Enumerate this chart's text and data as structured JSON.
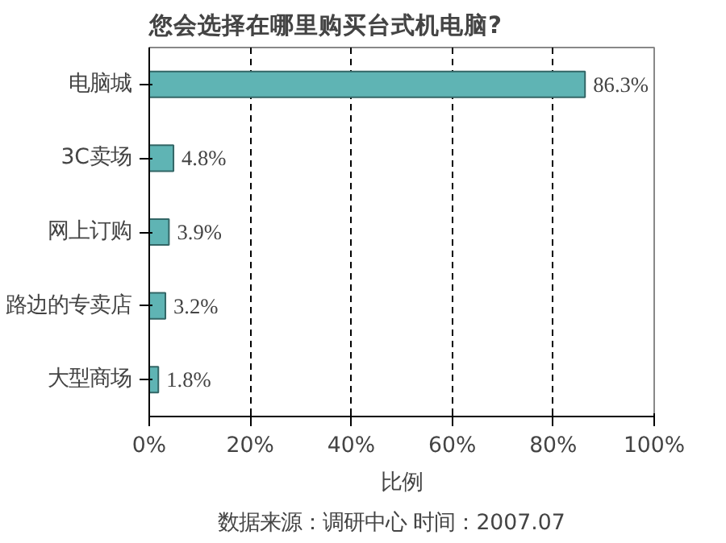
{
  "chart_data": {
    "type": "bar",
    "orientation": "horizontal",
    "title": "您会选择在哪里购买台式机电脑?",
    "categories": [
      "电脑城",
      "3C卖场",
      "网上订购",
      "路边的专卖店",
      "大型商场"
    ],
    "values": [
      86.3,
      4.8,
      3.9,
      3.2,
      1.8
    ],
    "value_labels": [
      "86.3%",
      "4.8%",
      "3.9%",
      "3.2%",
      "1.8%"
    ],
    "color": "#5fb4b4",
    "xlim": [
      0,
      100
    ],
    "xticks": [
      {
        "value": 0,
        "label": "0%"
      },
      {
        "value": 20,
        "label": "20%"
      },
      {
        "value": 40,
        "label": "40%"
      },
      {
        "value": 60,
        "label": "60%"
      },
      {
        "value": 80,
        "label": "80%"
      },
      {
        "value": 100,
        "label": "100%"
      }
    ],
    "xlabel": "比例",
    "grid": "x",
    "annotations": [
      "数据来源：调研中心    时间：2007.07"
    ]
  }
}
